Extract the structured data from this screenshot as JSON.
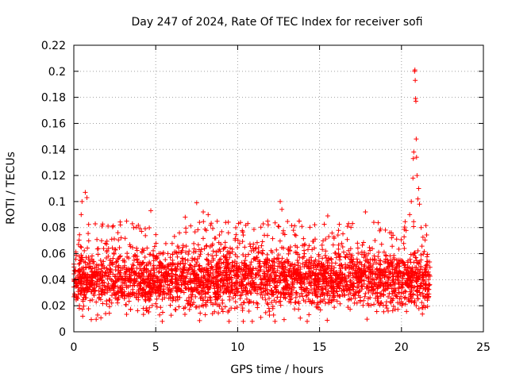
{
  "chart_data": {
    "type": "scatter",
    "title": "Day 247 of 2024, Rate Of TEC Index for receiver sofi",
    "xlabel": "GPS time / hours",
    "ylabel": "ROTI / TECUs",
    "xlim": [
      0,
      25
    ],
    "ylim": [
      0,
      0.22
    ],
    "x_ticks": [
      0,
      5,
      10,
      15,
      20,
      25
    ],
    "x_tick_labels": [
      "0",
      "5",
      "10",
      "15",
      "20",
      "25"
    ],
    "y_ticks": [
      0,
      0.02,
      0.04,
      0.06,
      0.08,
      0.1,
      0.12,
      0.14,
      0.16,
      0.18,
      0.2,
      0.22
    ],
    "y_tick_labels": [
      "0",
      "0.02",
      "0.04",
      "0.06",
      "0.08",
      "0.1",
      "0.12",
      "0.14",
      "0.16",
      "0.18",
      "0.2",
      "0.22"
    ],
    "grid": true,
    "marker": "plus",
    "color": "#ff0000",
    "x_data_range": [
      0,
      21.75
    ],
    "typical_band": [
      0.02,
      0.06
    ],
    "outliers": [
      {
        "x": 0.5,
        "y": 0.1
      },
      {
        "x": 0.7,
        "y": 0.107
      },
      {
        "x": 0.8,
        "y": 0.103
      },
      {
        "x": 0.45,
        "y": 0.09
      },
      {
        "x": 4.7,
        "y": 0.093
      },
      {
        "x": 6.8,
        "y": 0.088
      },
      {
        "x": 7.5,
        "y": 0.099
      },
      {
        "x": 7.9,
        "y": 0.092
      },
      {
        "x": 8.2,
        "y": 0.09
      },
      {
        "x": 12.6,
        "y": 0.1
      },
      {
        "x": 12.7,
        "y": 0.094
      },
      {
        "x": 15.5,
        "y": 0.089
      },
      {
        "x": 17.8,
        "y": 0.092
      },
      {
        "x": 20.5,
        "y": 0.09
      },
      {
        "x": 20.6,
        "y": 0.1
      },
      {
        "x": 20.7,
        "y": 0.118
      },
      {
        "x": 20.72,
        "y": 0.133
      },
      {
        "x": 20.75,
        "y": 0.138
      },
      {
        "x": 20.8,
        "y": 0.2
      },
      {
        "x": 20.82,
        "y": 0.201
      },
      {
        "x": 20.84,
        "y": 0.193
      },
      {
        "x": 20.86,
        "y": 0.179
      },
      {
        "x": 20.88,
        "y": 0.177
      },
      {
        "x": 20.9,
        "y": 0.148
      },
      {
        "x": 20.92,
        "y": 0.134
      },
      {
        "x": 20.95,
        "y": 0.12
      },
      {
        "x": 21.0,
        "y": 0.102
      },
      {
        "x": 21.05,
        "y": 0.11
      },
      {
        "x": 21.1,
        "y": 0.098
      },
      {
        "x": 21.2,
        "y": 0.08
      }
    ]
  }
}
